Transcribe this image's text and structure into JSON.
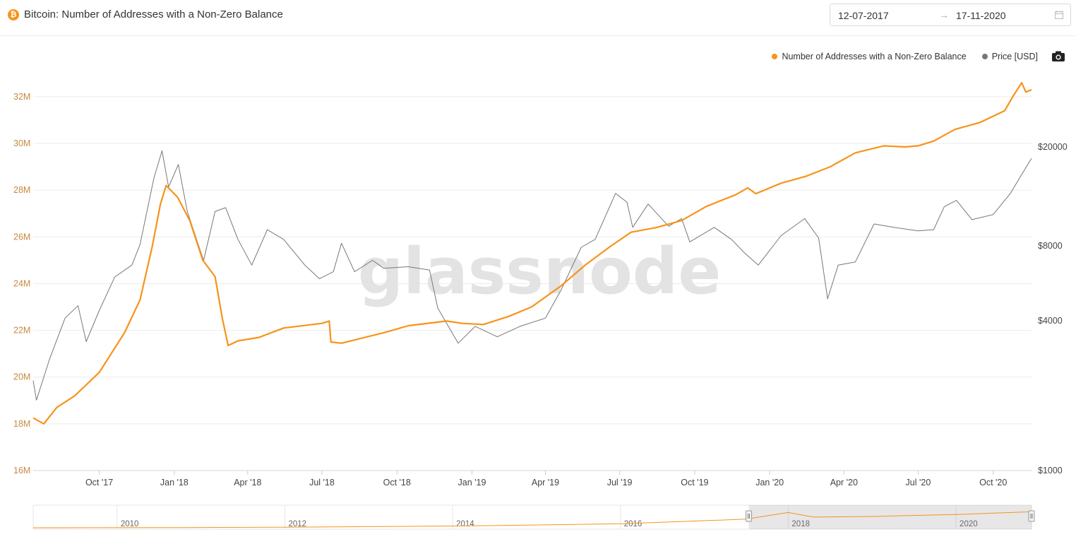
{
  "header": {
    "coin_glyph": "₿",
    "title": "Bitcoin: Number of Addresses with a Non-Zero Balance",
    "date_start": "12-07-2017",
    "date_arrow": "→",
    "date_end": "17-11-2020",
    "calendar_icon": "calendar-icon"
  },
  "legend": {
    "series_a": "Number of Addresses with a Non-Zero Balance",
    "series_b": "Price [USD]"
  },
  "watermark": "glassnode",
  "colors": {
    "addresses": "#f7931a",
    "price": "#777777",
    "left_axis_text": "#c8893e",
    "grid": "#ececec"
  },
  "chart_data": {
    "type": "line",
    "title": "Bitcoin: Number of Addresses with a Non-Zero Balance",
    "x_range": [
      "2017-07-12",
      "2020-11-17"
    ],
    "x_ticks": [
      "Oct '17",
      "Jan '18",
      "Apr '18",
      "Jul '18",
      "Oct '18",
      "Jan '19",
      "Apr '19",
      "Jul '19",
      "Oct '19",
      "Jan '20",
      "Apr '20",
      "Jul '20",
      "Oct '20"
    ],
    "left_axis": {
      "label": "Number of Addresses with a Non-Zero Balance",
      "ticks": [
        "16M",
        "18M",
        "20M",
        "22M",
        "24M",
        "26M",
        "28M",
        "30M",
        "32M"
      ],
      "ylim_millions": [
        16,
        33.6
      ]
    },
    "right_axis": {
      "label": "Price [USD]",
      "scale": "log",
      "ticks": [
        "$1000",
        "$4000",
        "$8000",
        "$20000"
      ],
      "ylim": [
        1000,
        45000
      ]
    },
    "legend_position": "top-right",
    "grid": true,
    "series": [
      {
        "name": "Number of Addresses with a Non-Zero Balance",
        "axis": "left",
        "unit": "millions",
        "points": [
          [
            "2017-07-12",
            18.25
          ],
          [
            "2017-07-25",
            18.0
          ],
          [
            "2017-08-10",
            18.7
          ],
          [
            "2017-09-01",
            19.2
          ],
          [
            "2017-10-01",
            20.2
          ],
          [
            "2017-11-01",
            21.9
          ],
          [
            "2017-11-20",
            23.3
          ],
          [
            "2017-12-05",
            25.6
          ],
          [
            "2017-12-15",
            27.4
          ],
          [
            "2017-12-22",
            28.2
          ],
          [
            "2018-01-05",
            27.7
          ],
          [
            "2018-01-20",
            26.7
          ],
          [
            "2018-02-05",
            25.0
          ],
          [
            "2018-02-20",
            24.3
          ],
          [
            "2018-03-01",
            22.5
          ],
          [
            "2018-03-08",
            21.35
          ],
          [
            "2018-03-20",
            21.55
          ],
          [
            "2018-04-15",
            21.7
          ],
          [
            "2018-05-15",
            22.1
          ],
          [
            "2018-07-01",
            22.3
          ],
          [
            "2018-07-10",
            22.4
          ],
          [
            "2018-07-12",
            21.5
          ],
          [
            "2018-07-25",
            21.45
          ],
          [
            "2018-09-15",
            21.9
          ],
          [
            "2018-10-15",
            22.2
          ],
          [
            "2018-12-01",
            22.4
          ],
          [
            "2018-12-20",
            22.3
          ],
          [
            "2019-01-15",
            22.25
          ],
          [
            "2019-02-15",
            22.6
          ],
          [
            "2019-03-15",
            23.0
          ],
          [
            "2019-04-20",
            23.9
          ],
          [
            "2019-05-20",
            24.8
          ],
          [
            "2019-06-20",
            25.6
          ],
          [
            "2019-07-15",
            26.2
          ],
          [
            "2019-08-15",
            26.4
          ],
          [
            "2019-09-15",
            26.7
          ],
          [
            "2019-10-15",
            27.3
          ],
          [
            "2019-11-20",
            27.8
          ],
          [
            "2019-12-05",
            28.1
          ],
          [
            "2019-12-15",
            27.85
          ],
          [
            "2020-01-15",
            28.3
          ],
          [
            "2020-02-15",
            28.6
          ],
          [
            "2020-03-15",
            29.0
          ],
          [
            "2020-04-15",
            29.6
          ],
          [
            "2020-05-20",
            29.9
          ],
          [
            "2020-06-15",
            29.85
          ],
          [
            "2020-07-01",
            29.9
          ],
          [
            "2020-07-20",
            30.1
          ],
          [
            "2020-08-15",
            30.6
          ],
          [
            "2020-09-15",
            30.9
          ],
          [
            "2020-10-15",
            31.4
          ],
          [
            "2020-10-25",
            32.0
          ],
          [
            "2020-11-05",
            32.6
          ],
          [
            "2020-11-10",
            32.2
          ],
          [
            "2020-11-17",
            32.3
          ]
        ]
      },
      {
        "name": "Price [USD]",
        "axis": "right",
        "unit": "USD",
        "points": [
          [
            "2017-07-12",
            2300
          ],
          [
            "2017-07-16",
            1920
          ],
          [
            "2017-08-01",
            2800
          ],
          [
            "2017-08-20",
            4100
          ],
          [
            "2017-09-05",
            4600
          ],
          [
            "2017-09-15",
            3300
          ],
          [
            "2017-10-01",
            4400
          ],
          [
            "2017-10-20",
            6000
          ],
          [
            "2017-11-10",
            6700
          ],
          [
            "2017-11-20",
            8100
          ],
          [
            "2017-12-07",
            15000
          ],
          [
            "2017-12-17",
            19300
          ],
          [
            "2017-12-25",
            13800
          ],
          [
            "2018-01-06",
            17000
          ],
          [
            "2018-01-17",
            11000
          ],
          [
            "2018-02-06",
            7000
          ],
          [
            "2018-02-20",
            11000
          ],
          [
            "2018-03-05",
            11400
          ],
          [
            "2018-03-20",
            8500
          ],
          [
            "2018-04-06",
            6700
          ],
          [
            "2018-04-25",
            9300
          ],
          [
            "2018-05-15",
            8500
          ],
          [
            "2018-06-10",
            6700
          ],
          [
            "2018-06-28",
            5900
          ],
          [
            "2018-07-15",
            6300
          ],
          [
            "2018-07-25",
            8200
          ],
          [
            "2018-08-10",
            6300
          ],
          [
            "2018-09-01",
            7000
          ],
          [
            "2018-09-15",
            6500
          ],
          [
            "2018-10-15",
            6600
          ],
          [
            "2018-11-10",
            6400
          ],
          [
            "2018-11-20",
            4500
          ],
          [
            "2018-12-15",
            3250
          ],
          [
            "2019-01-05",
            3800
          ],
          [
            "2019-02-01",
            3450
          ],
          [
            "2019-03-01",
            3800
          ],
          [
            "2019-04-01",
            4100
          ],
          [
            "2019-04-20",
            5300
          ],
          [
            "2019-05-15",
            7900
          ],
          [
            "2019-06-01",
            8500
          ],
          [
            "2019-06-26",
            13000
          ],
          [
            "2019-07-10",
            12000
          ],
          [
            "2019-07-17",
            9500
          ],
          [
            "2019-08-05",
            11800
          ],
          [
            "2019-08-30",
            9600
          ],
          [
            "2019-09-15",
            10300
          ],
          [
            "2019-09-25",
            8300
          ],
          [
            "2019-10-25",
            9500
          ],
          [
            "2019-11-15",
            8500
          ],
          [
            "2019-12-01",
            7500
          ],
          [
            "2019-12-18",
            6700
          ],
          [
            "2020-01-15",
            8800
          ],
          [
            "2020-02-13",
            10300
          ],
          [
            "2020-03-01",
            8600
          ],
          [
            "2020-03-12",
            4900
          ],
          [
            "2020-03-25",
            6700
          ],
          [
            "2020-04-15",
            6900
          ],
          [
            "2020-05-08",
            9800
          ],
          [
            "2020-06-01",
            9500
          ],
          [
            "2020-07-01",
            9200
          ],
          [
            "2020-07-20",
            9300
          ],
          [
            "2020-08-02",
            11500
          ],
          [
            "2020-08-17",
            12200
          ],
          [
            "2020-09-05",
            10200
          ],
          [
            "2020-10-01",
            10700
          ],
          [
            "2020-10-22",
            13000
          ],
          [
            "2020-11-05",
            15500
          ],
          [
            "2020-11-17",
            18000
          ]
        ]
      }
    ]
  },
  "navigator": {
    "labels": [
      "2010",
      "2012",
      "2014",
      "2016",
      "2018",
      "2020"
    ]
  }
}
